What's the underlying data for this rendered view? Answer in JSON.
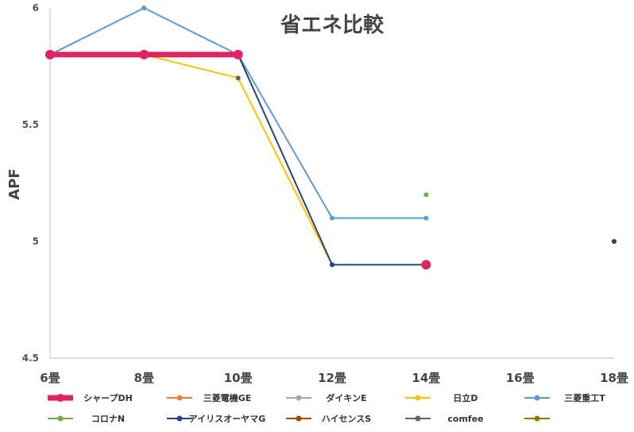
{
  "chart_data": {
    "type": "line",
    "title": "省エネ比較",
    "ylabel": "APF",
    "xlabel": "",
    "categories": [
      "6畳",
      "8畳",
      "10畳",
      "12畳",
      "14畳",
      "16畳",
      "18畳"
    ],
    "ylim": [
      4.5,
      6
    ],
    "yticks": [
      "4.5",
      "5",
      "5.5",
      "6"
    ],
    "grid": false,
    "legend_position": "bottom",
    "series": [
      {
        "name": "シャープDH",
        "color": "#e0245e",
        "emphasis": true,
        "values": [
          5.8,
          5.8,
          5.8,
          null,
          4.9,
          null,
          null
        ]
      },
      {
        "name": "三菱電機GE",
        "color": "#ed7d31",
        "values": [
          null,
          null,
          null,
          null,
          null,
          null,
          null
        ]
      },
      {
        "name": "ダイキンE",
        "color": "#a5a5a5",
        "values": [
          null,
          null,
          null,
          null,
          null,
          null,
          null
        ]
      },
      {
        "name": "日立D",
        "color": "#ffc000",
        "values": [
          5.8,
          5.8,
          5.7,
          4.9,
          null,
          null,
          null
        ]
      },
      {
        "name": "三菱重工T",
        "color": "#5b9bd5",
        "values": [
          5.8,
          6.0,
          5.8,
          5.1,
          5.1,
          null,
          5.0
        ]
      },
      {
        "name": "コロナN",
        "color": "#70ad47",
        "values": [
          null,
          null,
          null,
          null,
          5.2,
          null,
          5.0
        ]
      },
      {
        "name": "アイリスオーヤマG",
        "color": "#264478",
        "values": [
          null,
          null,
          5.8,
          4.9,
          4.9,
          null,
          5.0
        ]
      },
      {
        "name": "ハイセンスS",
        "color": "#9e480e",
        "values": [
          null,
          null,
          null,
          null,
          null,
          null,
          null
        ]
      },
      {
        "name": "comfee",
        "color": "#636363",
        "values": [
          null,
          null,
          5.7,
          null,
          null,
          null,
          null
        ]
      },
      {
        "name": "",
        "color": "#997300",
        "values": [
          null,
          null,
          null,
          null,
          null,
          null,
          null
        ]
      }
    ]
  }
}
